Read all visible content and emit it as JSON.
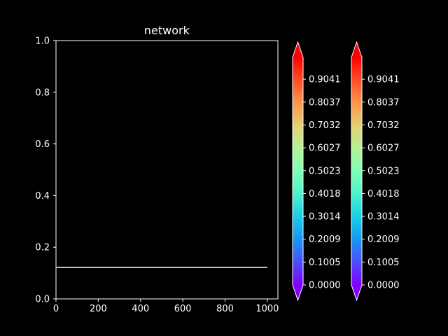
{
  "chart_data": {
    "type": "line",
    "title": "network",
    "xlabel": "",
    "ylabel": "",
    "xlim": [
      0,
      1050
    ],
    "ylim": [
      0,
      1.0
    ],
    "xticks": [
      0,
      200,
      400,
      600,
      800,
      1000
    ],
    "xtick_labels": [
      "0",
      "200",
      "400",
      "600",
      "800",
      "1000"
    ],
    "yticks": [
      0.0,
      0.2,
      0.4,
      0.6,
      0.8,
      1.0
    ],
    "ytick_labels": [
      "0.0",
      "0.2",
      "0.4",
      "0.6",
      "0.8",
      "1.0"
    ],
    "grid": false,
    "series": [
      {
        "x": [
          0,
          1000
        ],
        "y": [
          0.122,
          0.122
        ],
        "color": "#8ecfd0"
      }
    ],
    "colorbars": [
      {
        "colormap": "rainbow",
        "extend": "both",
        "range": [
          0.0,
          1.0
        ],
        "tick_values": [
          0.0,
          0.1005,
          0.2009,
          0.3014,
          0.4018,
          0.5023,
          0.6027,
          0.7032,
          0.8037,
          0.9041
        ],
        "tick_labels": [
          "0.0000",
          "0.1005",
          "0.2009",
          "0.3014",
          "0.4018",
          "0.5023",
          "0.6027",
          "0.7032",
          "0.8037",
          "0.9041"
        ]
      },
      {
        "colormap": "rainbow",
        "extend": "both",
        "range": [
          0.0,
          1.0
        ],
        "tick_values": [
          0.0,
          0.1005,
          0.2009,
          0.3014,
          0.4018,
          0.5023,
          0.6027,
          0.7032,
          0.8037,
          0.9041
        ],
        "tick_labels": [
          "0.0000",
          "0.1005",
          "0.2009",
          "0.3014",
          "0.4018",
          "0.5023",
          "0.6027",
          "0.7032",
          "0.8037",
          "0.9041"
        ]
      }
    ]
  },
  "colors": {
    "background": "#000000",
    "foreground": "#ffffff"
  }
}
